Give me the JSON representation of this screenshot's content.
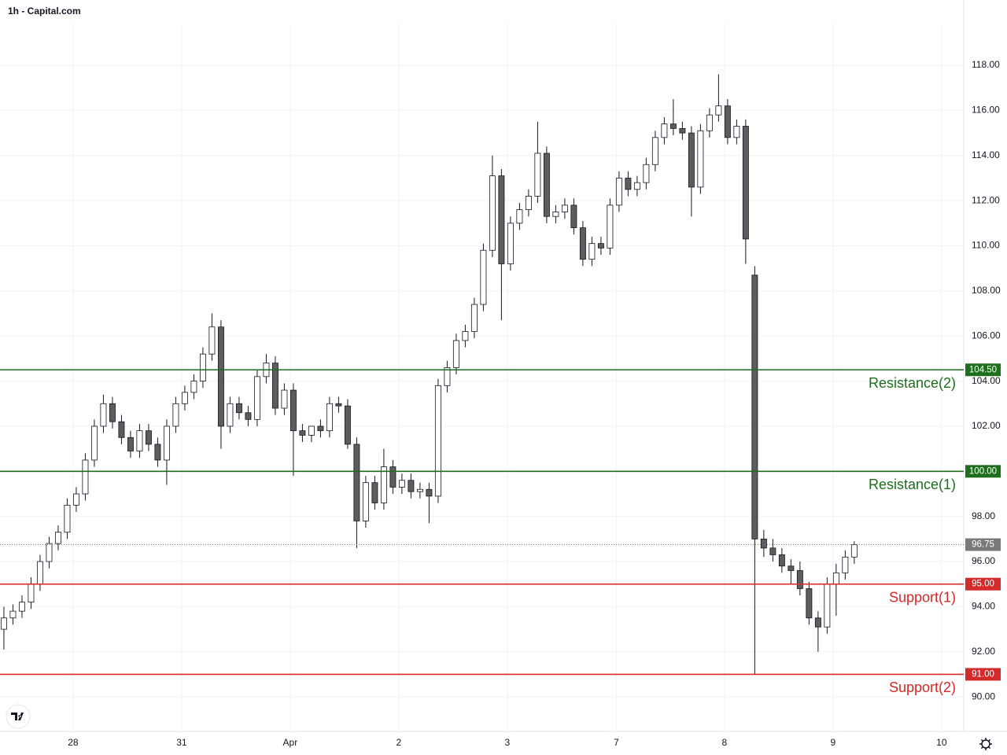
{
  "chart_data": {
    "type": "candlestick",
    "title": "1h - Capital.com",
    "open": [
      93.0,
      93.5,
      93.8,
      94.2,
      95.0,
      96.0,
      96.8,
      97.3,
      98.5,
      99.0,
      100.5,
      102.0,
      103.0,
      102.2,
      101.5,
      100.9,
      101.8,
      101.2,
      100.5,
      102.0,
      103.0,
      103.5,
      104.0,
      105.2,
      106.4,
      102.0,
      103.0,
      102.6,
      102.3,
      104.2,
      104.8,
      102.8,
      103.6,
      101.8,
      101.6,
      102.0,
      101.8,
      103.0,
      102.9,
      101.2,
      97.8,
      99.5,
      98.6,
      100.2,
      99.3,
      99.6,
      99.1,
      99.2,
      98.9,
      103.8,
      104.6,
      105.8,
      106.2,
      107.4,
      109.8,
      113.1,
      109.2,
      111.0,
      111.6,
      112.2,
      114.1,
      111.3,
      111.5,
      111.8,
      110.8,
      109.4,
      110.1,
      109.9,
      111.8,
      113.0,
      112.5,
      112.8,
      113.6,
      114.8,
      115.4,
      115.2,
      115.0,
      112.6,
      115.1,
      115.8,
      116.2,
      114.8,
      115.3,
      108.7,
      97.0,
      96.6,
      96.3,
      95.8,
      95.6,
      94.8,
      93.5,
      93.1,
      95.0,
      95.5,
      96.2
    ],
    "high": [
      94.0,
      94.1,
      94.5,
      95.3,
      96.3,
      97.1,
      97.6,
      98.8,
      99.3,
      100.8,
      102.3,
      103.4,
      103.3,
      102.5,
      101.8,
      102.1,
      102.1,
      101.5,
      102.3,
      103.3,
      103.8,
      104.3,
      105.5,
      107.0,
      106.7,
      103.3,
      103.3,
      102.9,
      104.5,
      105.2,
      105.1,
      103.9,
      103.9,
      102.1,
      102.0,
      102.3,
      103.3,
      103.3,
      103.2,
      101.5,
      99.8,
      99.8,
      101.0,
      100.5,
      99.9,
      99.9,
      99.5,
      99.5,
      104.1,
      104.9,
      106.1,
      106.5,
      107.7,
      110.1,
      114.0,
      113.4,
      111.3,
      111.9,
      112.5,
      115.5,
      114.4,
      111.8,
      112.1,
      112.1,
      111.1,
      110.4,
      110.4,
      112.1,
      113.3,
      113.3,
      113.1,
      113.9,
      115.1,
      115.7,
      116.5,
      115.5,
      115.3,
      115.4,
      116.1,
      117.6,
      116.5,
      115.6,
      115.6,
      109.1,
      97.4,
      97.0,
      96.6,
      96.1,
      96.0,
      95.1,
      93.8,
      95.3,
      95.9,
      96.5,
      96.9
    ],
    "low": [
      92.1,
      93.2,
      93.5,
      93.9,
      94.7,
      95.7,
      96.5,
      97.0,
      98.2,
      98.7,
      100.2,
      101.7,
      101.9,
      101.2,
      100.6,
      100.6,
      100.9,
      100.2,
      99.4,
      101.7,
      102.7,
      103.2,
      103.7,
      104.9,
      101.0,
      101.7,
      102.3,
      102.0,
      102.0,
      103.9,
      102.5,
      102.5,
      99.8,
      101.3,
      101.3,
      101.5,
      101.5,
      102.6,
      101.0,
      96.6,
      97.5,
      98.3,
      98.3,
      99.0,
      99.0,
      98.8,
      98.8,
      97.7,
      98.6,
      103.5,
      104.3,
      105.5,
      105.9,
      107.1,
      109.5,
      106.7,
      108.9,
      110.7,
      111.3,
      111.9,
      111.0,
      111.0,
      111.2,
      110.5,
      109.1,
      109.1,
      109.6,
      109.6,
      111.5,
      112.2,
      112.2,
      112.5,
      113.3,
      114.5,
      114.9,
      114.7,
      111.3,
      112.3,
      114.8,
      115.5,
      114.5,
      114.5,
      109.2,
      91.0,
      96.2,
      96.0,
      95.5,
      95.0,
      94.5,
      93.2,
      92.0,
      92.8,
      93.6,
      95.2,
      95.9
    ],
    "close": [
      93.5,
      93.8,
      94.2,
      95.0,
      96.0,
      96.8,
      97.3,
      98.5,
      99.0,
      100.5,
      102.0,
      103.0,
      102.2,
      101.5,
      100.9,
      101.8,
      101.2,
      100.5,
      102.0,
      103.0,
      103.5,
      104.0,
      105.2,
      106.4,
      102.0,
      103.0,
      102.6,
      102.3,
      104.2,
      104.8,
      102.8,
      103.6,
      101.8,
      101.6,
      102.0,
      101.8,
      103.0,
      102.9,
      101.2,
      97.8,
      99.5,
      98.6,
      100.2,
      99.3,
      99.6,
      99.1,
      99.2,
      98.9,
      103.8,
      104.6,
      105.8,
      106.2,
      107.4,
      109.8,
      113.1,
      109.2,
      111.0,
      111.6,
      112.2,
      114.1,
      111.3,
      111.5,
      111.8,
      110.8,
      109.4,
      110.1,
      109.9,
      111.8,
      113.0,
      112.5,
      112.8,
      113.6,
      114.8,
      115.4,
      115.2,
      115.0,
      112.6,
      115.1,
      115.8,
      116.2,
      114.8,
      115.3,
      110.3,
      97.0,
      96.6,
      96.3,
      95.8,
      95.6,
      94.8,
      93.5,
      93.1,
      95.0,
      95.5,
      96.2,
      96.75
    ],
    "up_color": "#ffffff",
    "down_color": "#5d5d5d",
    "wick_color": "#131722",
    "xlim": [
      -0.43,
      106.1
    ],
    "xticks": [
      {
        "value": 7.65,
        "label": "28"
      },
      {
        "value": 19.65,
        "label": "31"
      },
      {
        "value": 31.65,
        "label": "Apr"
      },
      {
        "value": 43.65,
        "label": "2"
      },
      {
        "value": 55.65,
        "label": "3"
      },
      {
        "value": 67.7,
        "label": "7"
      },
      {
        "value": 79.65,
        "label": "8"
      },
      {
        "value": 91.65,
        "label": "9"
      },
      {
        "value": 103.65,
        "label": "10"
      }
    ],
    "ylim": [
      88.47,
      119.85
    ],
    "yticks": [
      {
        "value": 90,
        "label": "90.00"
      },
      {
        "value": 92,
        "label": "92.00"
      },
      {
        "value": 94,
        "label": "94.00"
      },
      {
        "value": 96,
        "label": "96.00"
      },
      {
        "value": 98,
        "label": "98.00"
      },
      {
        "value": 100,
        "label": "100.00"
      },
      {
        "value": 102,
        "label": "102.00"
      },
      {
        "value": 104,
        "label": "104.00"
      },
      {
        "value": 106,
        "label": "106.00"
      },
      {
        "value": 108,
        "label": "108.00"
      },
      {
        "value": 110,
        "label": "110.00"
      },
      {
        "value": 112,
        "label": "112.00"
      },
      {
        "value": 114,
        "label": "114.00"
      },
      {
        "value": 116,
        "label": "116.00"
      },
      {
        "value": 118,
        "label": "118.00"
      }
    ],
    "grid": true,
    "levels": [
      {
        "name": "Resistance(2)",
        "value": 104.5,
        "value_label": "104.50",
        "color": "#1e6e1e"
      },
      {
        "name": "Resistance(1)",
        "value": 100.0,
        "value_label": "100.00",
        "color": "#1e6e1e"
      },
      {
        "name": "Support(1)",
        "value": 95.0,
        "value_label": "95.00",
        "color": "#d42a2a"
      },
      {
        "name": "Support(2)",
        "value": 91.0,
        "value_label": "91.00",
        "color": "#d42a2a"
      }
    ],
    "last_price": {
      "value": 96.75,
      "label": "96.75",
      "color": "#7a7a7a"
    }
  }
}
